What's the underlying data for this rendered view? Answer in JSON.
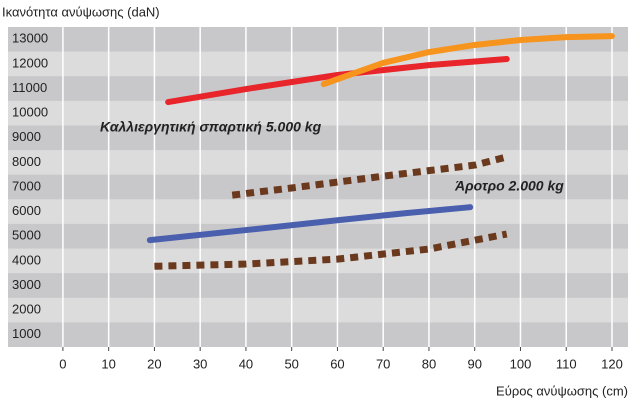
{
  "chart_data": {
    "type": "line",
    "y_label": "Ικανότητα ανύψωσης (daN)",
    "x_label": "Εύρος ανύψωσης (cm)",
    "annotations": [
      "Καλλιεργητική σπαρτική 5.000 kg",
      "Άροτρο 2.000 kg"
    ],
    "xlim": [
      -12,
      123.5
    ],
    "ylim": [
      500,
      13500
    ],
    "xticks": [
      0,
      10,
      20,
      30,
      40,
      50,
      60,
      70,
      80,
      90,
      100,
      110,
      120
    ],
    "yticks": [
      1000,
      2000,
      3000,
      4000,
      5000,
      6000,
      7000,
      8000,
      9000,
      10000,
      11000,
      12000,
      13000
    ],
    "grid": true,
    "series": [
      {
        "color": "#e8252b",
        "style": "solid",
        "x": [
          23,
          40,
          60,
          80,
          97
        ],
        "values": [
          10450,
          10980,
          11550,
          11950,
          12200
        ]
      },
      {
        "color": "#f7941d",
        "style": "solid",
        "x": [
          57,
          70,
          80,
          90,
          100,
          110,
          120
        ],
        "values": [
          11180,
          12040,
          12480,
          12770,
          12970,
          13090,
          13130
        ]
      },
      {
        "color": "#4a5fad",
        "style": "solid",
        "x": [
          19,
          40,
          60,
          75,
          89
        ],
        "values": [
          4840,
          5250,
          5650,
          5940,
          6180
        ]
      },
      {
        "color": "#6b3a1e",
        "style": "dotted",
        "x": [
          37,
          50,
          70,
          90,
          97
        ],
        "values": [
          6670,
          6960,
          7440,
          7890,
          8220
        ]
      },
      {
        "color": "#6b3a1e",
        "style": "dotted",
        "x": [
          20,
          40,
          60,
          80,
          97
        ],
        "values": [
          3780,
          3870,
          4070,
          4480,
          5090
        ]
      }
    ]
  }
}
